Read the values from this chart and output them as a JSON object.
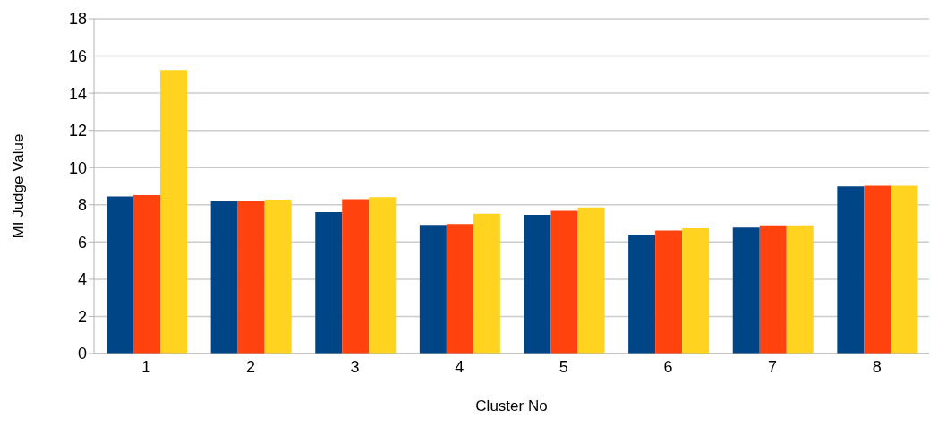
{
  "chart_data": {
    "type": "bar",
    "xlabel": "Cluster No",
    "ylabel": "MI Judge Value",
    "categories": [
      "1",
      "2",
      "3",
      "4",
      "5",
      "6",
      "7",
      "8"
    ],
    "series": [
      {
        "color": "#004586",
        "values": [
          8.45,
          8.22,
          7.6,
          6.92,
          7.46,
          6.39,
          6.78,
          8.99
        ]
      },
      {
        "color": "#ff420e",
        "values": [
          8.52,
          8.22,
          8.3,
          6.97,
          7.68,
          6.62,
          6.89,
          9.03
        ]
      },
      {
        "color": "#ffd320",
        "values": [
          15.25,
          8.28,
          8.41,
          7.52,
          7.86,
          6.74,
          6.9,
          9.03
        ]
      }
    ],
    "ylim": [
      0,
      18
    ],
    "yticks": [
      0,
      2,
      4,
      6,
      8,
      10,
      12,
      14,
      16,
      18
    ],
    "grid": "y",
    "legend": false
  }
}
